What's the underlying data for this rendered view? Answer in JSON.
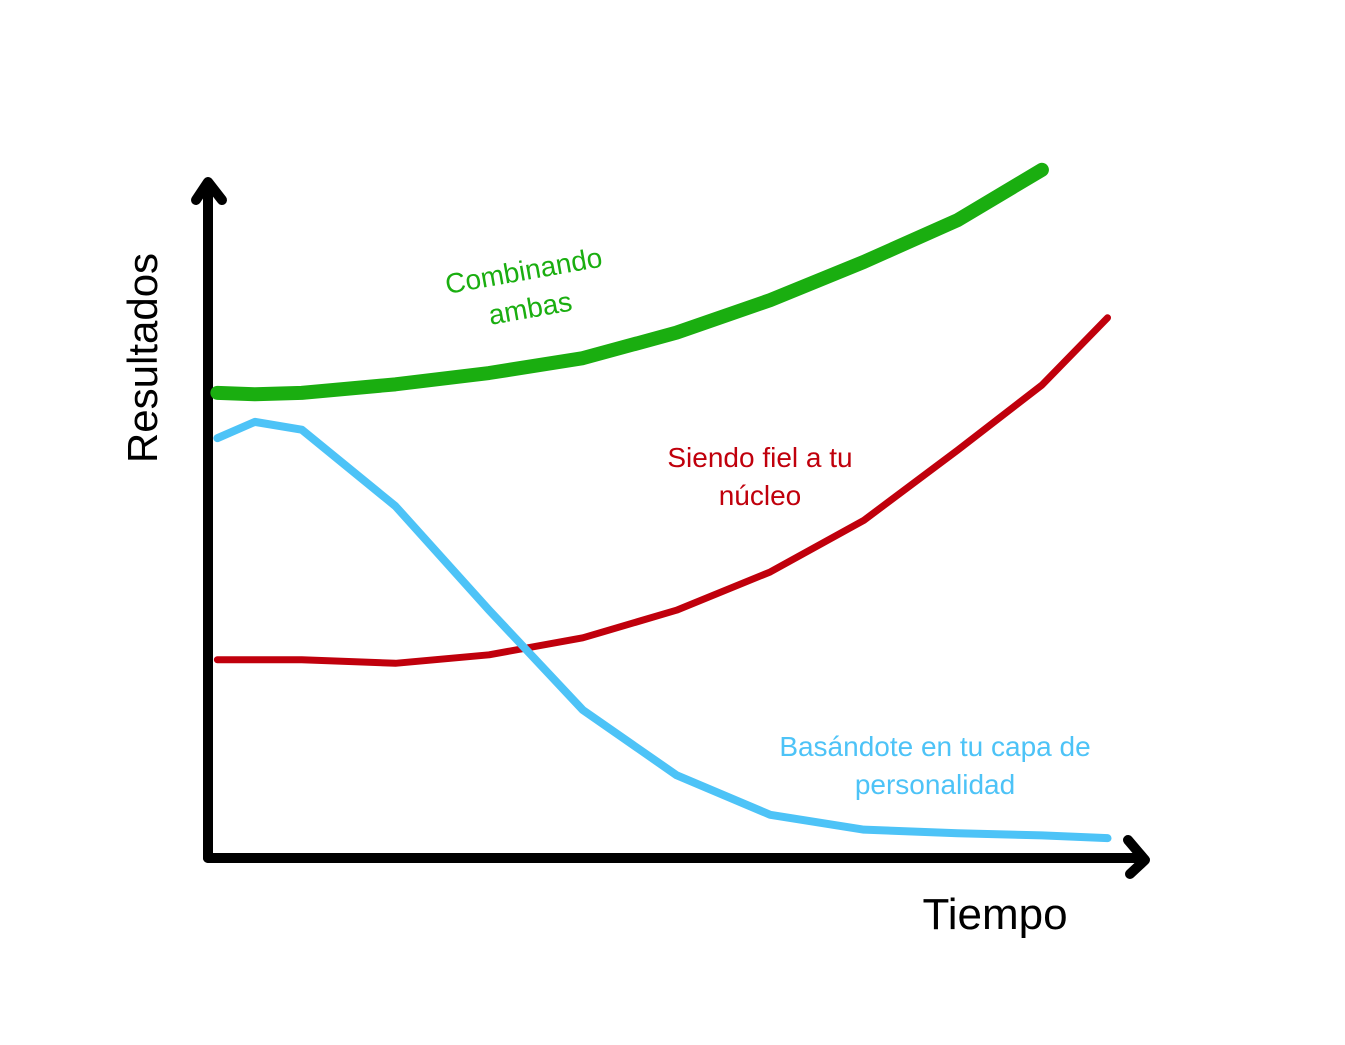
{
  "chart_data": {
    "type": "line",
    "x_label": "Tiempo",
    "y_label": "Resultados",
    "x": [
      1,
      5,
      10,
      20,
      30,
      40,
      50,
      60,
      70,
      80,
      89,
      96
    ],
    "xlim": [
      0,
      100
    ],
    "ylim": [
      0,
      100
    ],
    "series": [
      {
        "name": "Combinando ambas",
        "color": "#1aae10",
        "values": [
          65.7,
          65.5,
          65.7,
          66.9,
          68.5,
          70.6,
          74.2,
          78.8,
          84.2,
          90.1,
          97.2,
          null
        ]
      },
      {
        "name": "Siendo fiel a tu núcleo",
        "color": "#c0000c",
        "values": [
          28,
          28,
          28,
          27.5,
          28.7,
          31.1,
          35,
          40.4,
          47.7,
          57.6,
          66.8,
          76.3
        ]
      },
      {
        "name": "Basándote en tu capa de personalidad",
        "color": "#4dc3f7",
        "values": [
          59.3,
          61.6,
          60.5,
          49.7,
          35.0,
          20.9,
          11.7,
          6.1,
          4.0,
          3.5,
          3.2,
          2.8
        ]
      }
    ]
  }
}
